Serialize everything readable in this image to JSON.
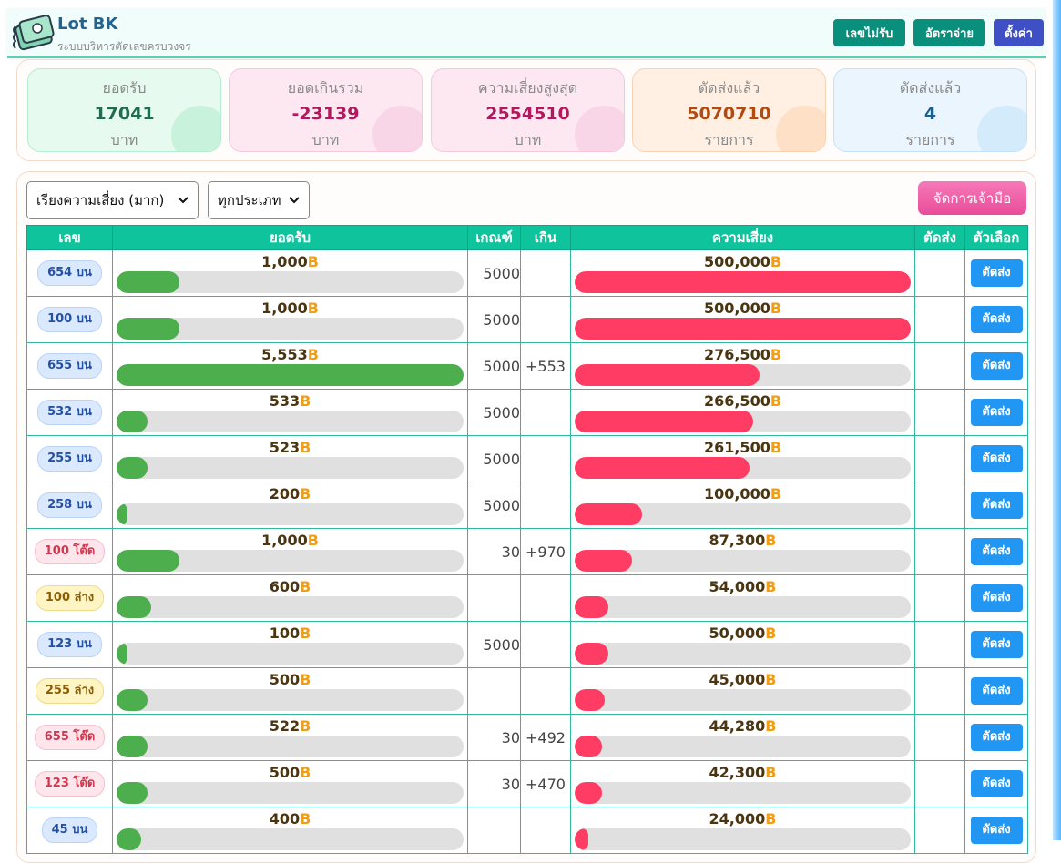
{
  "app": {
    "title": "Lot BK",
    "subtitle": "ระบบบริหารตัดเลขครบวงจร"
  },
  "header_buttons": [
    {
      "label": "เลขไม่รับ",
      "color": "#0b8f7d"
    },
    {
      "label": "อัตราจ่าย",
      "color": "#0b8f7d"
    },
    {
      "label": "ตั้งค่า",
      "color": "#3f4fc6"
    }
  ],
  "stats": [
    {
      "label": "ยอดรับ",
      "value": "17041",
      "unit": "บาท",
      "color": "#1f6d4e",
      "bg": "#e6faf0",
      "border": "#b6ecd0",
      "circle": "#c9f2dc"
    },
    {
      "label": "ยอดเกินรวม",
      "value": "-23139",
      "unit": "บาท",
      "color": "#b01a5c",
      "bg": "#fde8f2",
      "border": "#f5c6dc",
      "circle": "#f9d6e7"
    },
    {
      "label": "ความเสี่ยงสูงสุด",
      "value": "2554510",
      "unit": "บาท",
      "color": "#b01a5c",
      "bg": "#fde8f2",
      "border": "#f5c6dc",
      "circle": "#f9d6e7"
    },
    {
      "label": "ตัดส่งแล้ว",
      "value": "5070710",
      "unit": "รายการ",
      "color": "#b34a0f",
      "bg": "#fff0e3",
      "border": "#f7d2b3",
      "circle": "#fde0c6"
    },
    {
      "label": "ตัดส่งแล้ว",
      "value": "4",
      "unit": "รายการ",
      "color": "#1d5f8c",
      "bg": "#eaf5fe",
      "border": "#c3e1f8",
      "circle": "#d4ebfc"
    }
  ],
  "filters": {
    "sort": "เรียงความเสี่ยง (มาก)",
    "type": "ทุกประเภท"
  },
  "manage_button": "จัดการเจ้ามือ",
  "columns": [
    "เลข",
    "ยอดรับ",
    "เกณฑ์",
    "เกิน",
    "ความเสี่ยง",
    "ตัดส่ง",
    "ตัวเลือก"
  ],
  "currency": "B",
  "cut_label": "ตัดส่ง",
  "rows": [
    {
      "num": "654 บน",
      "type": "bon",
      "amount": "1,000",
      "amount_pct": 18,
      "limit": "5000",
      "over": "",
      "risk": "500,000",
      "risk_pct": 100
    },
    {
      "num": "100 บน",
      "type": "bon",
      "amount": "1,000",
      "amount_pct": 18,
      "limit": "5000",
      "over": "",
      "risk": "500,000",
      "risk_pct": 100
    },
    {
      "num": "655 บน",
      "type": "bon",
      "amount": "5,553",
      "amount_pct": 100,
      "limit": "5000",
      "over": "+553",
      "risk": "276,500",
      "risk_pct": 55
    },
    {
      "num": "532 บน",
      "type": "bon",
      "amount": "533",
      "amount_pct": 9,
      "limit": "5000",
      "over": "",
      "risk": "266,500",
      "risk_pct": 53
    },
    {
      "num": "255 บน",
      "type": "bon",
      "amount": "523",
      "amount_pct": 9,
      "limit": "5000",
      "over": "",
      "risk": "261,500",
      "risk_pct": 52
    },
    {
      "num": "258 บน",
      "type": "bon",
      "amount": "200",
      "amount_pct": 3,
      "limit": "5000",
      "over": "",
      "risk": "100,000",
      "risk_pct": 20
    },
    {
      "num": "100 โต๊ด",
      "type": "tod",
      "amount": "1,000",
      "amount_pct": 18,
      "limit": "30",
      "over": "+970",
      "risk": "87,300",
      "risk_pct": 17
    },
    {
      "num": "100 ล่าง",
      "type": "lang",
      "amount": "600",
      "amount_pct": 10,
      "limit": "",
      "over": "",
      "risk": "54,000",
      "risk_pct": 10
    },
    {
      "num": "123 บน",
      "type": "bon",
      "amount": "100",
      "amount_pct": 3,
      "limit": "5000",
      "over": "",
      "risk": "50,000",
      "risk_pct": 10
    },
    {
      "num": "255 ล่าง",
      "type": "lang",
      "amount": "500",
      "amount_pct": 9,
      "limit": "",
      "over": "",
      "risk": "45,000",
      "risk_pct": 9
    },
    {
      "num": "655 โต๊ด",
      "type": "tod",
      "amount": "522",
      "amount_pct": 9,
      "limit": "30",
      "over": "+492",
      "risk": "44,280",
      "risk_pct": 8
    },
    {
      "num": "123 โต๊ด",
      "type": "tod",
      "amount": "500",
      "amount_pct": 9,
      "limit": "30",
      "over": "+470",
      "risk": "42,300",
      "risk_pct": 8
    },
    {
      "num": "45 บน",
      "type": "bon",
      "amount": "400",
      "amount_pct": 7,
      "limit": "",
      "over": "",
      "risk": "24,000",
      "risk_pct": 4
    }
  ]
}
